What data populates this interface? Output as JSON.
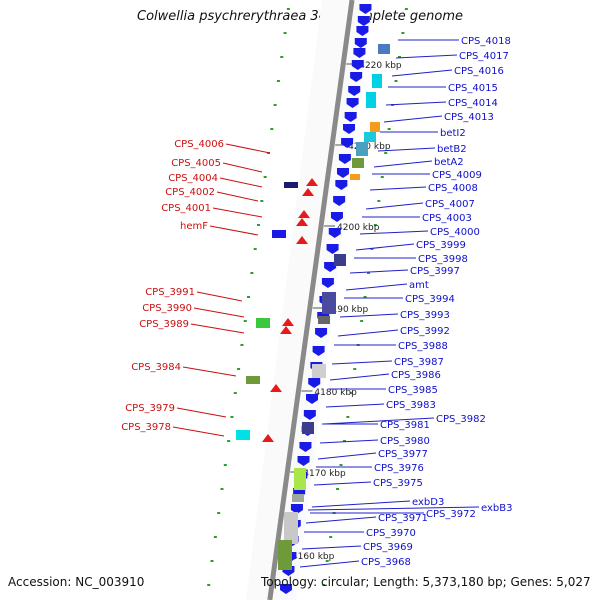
{
  "title": "Colwellia psychrerythraea 34H, complete genome",
  "accession": "Accession: NC_003910",
  "topology": "Topology: circular; Length: 5,373,180 bp; Genes: 5,027",
  "colors": {
    "forward_label": "#1010cc",
    "reverse_label": "#cc1010",
    "forward_gene": "#1a1ae6",
    "reverse_gene": "#e61a1a",
    "backbone": "#888888"
  },
  "ticks": [
    "4220 kbp",
    "4210 kbp",
    "4200 kbp",
    "4190 kbp",
    "4180 kbp",
    "4170 kbp",
    "4160 kbp"
  ],
  "genes_right": [
    "CPS_4018",
    "CPS_4017",
    "CPS_4016",
    "CPS_4015",
    "CPS_4014",
    "CPS_4013",
    "betI2",
    "betB2",
    "betA2",
    "CPS_4009",
    "CPS_4008",
    "CPS_4007",
    "CPS_4003",
    "CPS_4000",
    "CPS_3999",
    "CPS_3998",
    "CPS_3997",
    "amt",
    "CPS_3994",
    "CPS_3993",
    "CPS_3992",
    "CPS_3988",
    "CPS_3987",
    "CPS_3986",
    "CPS_3985",
    "CPS_3983",
    "CPS_3982",
    "CPS_3981",
    "CPS_3980",
    "CPS_3977",
    "CPS_3976",
    "CPS_3975",
    "exbD3",
    "CPS_3972",
    "exbB3",
    "CPS_3971",
    "CPS_3970",
    "CPS_3969",
    "CPS_3968"
  ],
  "genes_left": [
    "CPS_4006",
    "CPS_4005",
    "CPS_4004",
    "CPS_4002",
    "CPS_4001",
    "hemF",
    "CPS_3991",
    "CPS_3990",
    "CPS_3989",
    "CPS_3984",
    "CPS_3979",
    "CPS_3978"
  ]
}
